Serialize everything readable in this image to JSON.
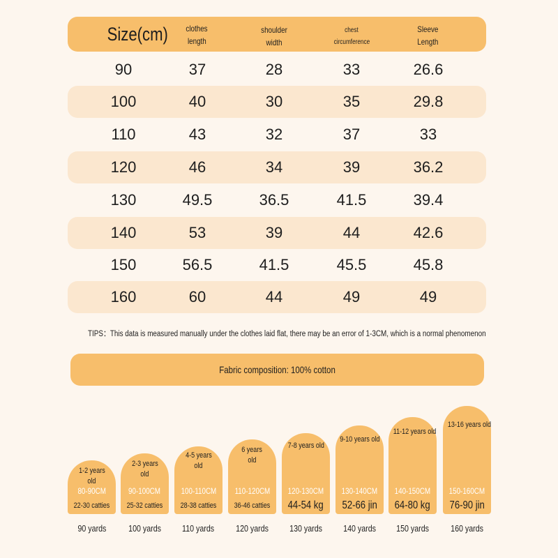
{
  "table": {
    "headers": {
      "size": "Size(cm)",
      "length_1": "clothes",
      "length_2": "length",
      "shoulder_1": "shoulder",
      "shoulder_2": "width",
      "chest_1": "chest",
      "chest_2": "circumference",
      "sleeve_1": "Sleeve",
      "sleeve_2": "Length"
    },
    "rows": [
      [
        "90",
        "37",
        "28",
        "33",
        "26.6"
      ],
      [
        "100",
        "40",
        "30",
        "35",
        "29.8"
      ],
      [
        "110",
        "43",
        "32",
        "37",
        "33"
      ],
      [
        "120",
        "46",
        "34",
        "39",
        "36.2"
      ],
      [
        "130",
        "49.5",
        "36.5",
        "41.5",
        "39.4"
      ],
      [
        "140",
        "53",
        "39",
        "44",
        "42.6"
      ],
      [
        "150",
        "56.5",
        "41.5",
        "45.5",
        "45.8"
      ],
      [
        "160",
        "60",
        "44",
        "49",
        "49"
      ]
    ]
  },
  "tips": "TIPS：This data is measured manually under the clothes laid flat, there may be an error of 1-3CM, which is a normal phenomenon",
  "fabric": "Fabric composition: 100% cotton",
  "size_guide": [
    {
      "age_1": "1-2 years",
      "age_2": "old",
      "cm": "80-90CM",
      "weight": "22-30 catties",
      "yards": "90 yards"
    },
    {
      "age_1": "2-3 years",
      "age_2": "old",
      "cm": "90-100CM",
      "weight": "25-32 catties",
      "yards": "100 yards"
    },
    {
      "age_1": "4-5 years",
      "age_2": "old",
      "cm": "100-110CM",
      "weight": "28-38 catties",
      "yards": "110 yards"
    },
    {
      "age_1": "6 years",
      "age_2": "old",
      "cm": "110-120CM",
      "weight": "36-46 catties",
      "yards": "120 yards"
    },
    {
      "age_1": "7-8 years old",
      "age_2": "",
      "cm": "120-130CM",
      "weight": "44-54 kg",
      "yards": "130 yards"
    },
    {
      "age_1": "9-10 years old",
      "age_2": "",
      "cm": "130-140CM",
      "weight": "52-66 jin",
      "yards": "140 yards"
    },
    {
      "age_1": "11-12 years old",
      "age_2": "",
      "cm": "140-150CM",
      "weight": "64-80 kg",
      "yards": "150 yards"
    },
    {
      "age_1": "13-16 years old",
      "age_2": "",
      "cm": "150-160CM",
      "weight": "76-90 jin",
      "yards": "160 yards"
    }
  ],
  "colors": {
    "accent": "#f7be6b",
    "row_alt": "#fbe7cf",
    "background": "#fdf6ee"
  }
}
